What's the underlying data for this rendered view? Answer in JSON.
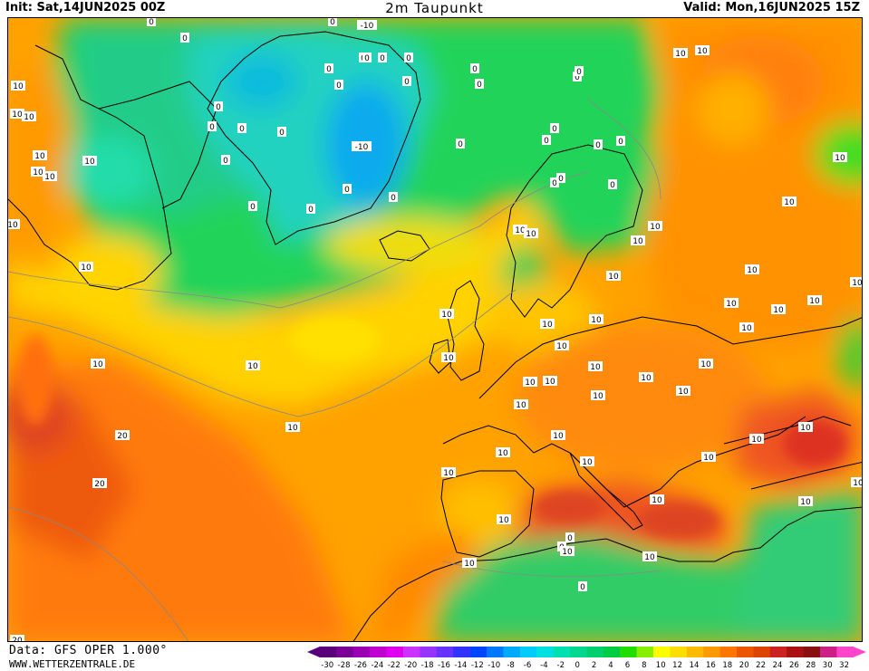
{
  "header": {
    "init_text": "Init: Sat,14JUN2025 00Z",
    "title": "2m Taupunkt",
    "valid_text": "Valid: Mon,16JUN2025 15Z"
  },
  "footer": {
    "data_source": "Data: GFS OPER 1.000°",
    "website": "WWW.WETTERZENTRALE.DE"
  },
  "colorbar": {
    "ticks": [
      "-30",
      "-28",
      "-26",
      "-24",
      "-22",
      "-20",
      "-18",
      "-16",
      "-14",
      "-12",
      "-10",
      "-8",
      "-6",
      "-4",
      "-2",
      "0",
      "2",
      "4",
      "6",
      "8",
      "10",
      "12",
      "14",
      "16",
      "18",
      "20",
      "22",
      "24",
      "26",
      "28",
      "30",
      "32"
    ],
    "colors": [
      "#5a007a",
      "#7a0096",
      "#9a00b4",
      "#c000d0",
      "#e000f0",
      "#cc33ff",
      "#9933ff",
      "#6633ff",
      "#3333ff",
      "#0044ff",
      "#0077ff",
      "#00aaff",
      "#00ccff",
      "#00e0e0",
      "#00e0b0",
      "#00d890",
      "#00d070",
      "#00cc44",
      "#22dd00",
      "#88ee00",
      "#ffff00",
      "#ffdd00",
      "#ffbb00",
      "#ff9900",
      "#ff7700",
      "#ee5500",
      "#dd4400",
      "#cc2222",
      "#aa1111",
      "#881111",
      "#cc2288",
      "#ff44cc"
    ]
  },
  "map_labels": [
    {
      "text": "0"
    },
    {
      "text": "0"
    },
    {
      "text": "0"
    },
    {
      "text": "0"
    },
    {
      "text": "-10"
    },
    {
      "text": "0"
    },
    {
      "text": "0"
    },
    {
      "text": "0"
    },
    {
      "text": "0"
    },
    {
      "text": "0"
    },
    {
      "text": "0"
    },
    {
      "text": "0"
    },
    {
      "text": "0"
    },
    {
      "text": "0"
    },
    {
      "text": "0"
    },
    {
      "text": "0"
    },
    {
      "text": "0"
    },
    {
      "text": "0"
    },
    {
      "text": "0"
    },
    {
      "text": "0"
    },
    {
      "text": "-10"
    },
    {
      "text": "0"
    },
    {
      "text": "0"
    },
    {
      "text": "0"
    },
    {
      "text": "0"
    },
    {
      "text": "0"
    },
    {
      "text": "0"
    },
    {
      "text": "0"
    },
    {
      "text": "0"
    },
    {
      "text": "0"
    },
    {
      "text": "0"
    },
    {
      "text": "0"
    },
    {
      "text": "0"
    },
    {
      "text": "0"
    },
    {
      "text": "0"
    },
    {
      "text": "0"
    },
    {
      "text": "10"
    },
    {
      "text": "10"
    },
    {
      "text": "10"
    },
    {
      "text": "10"
    },
    {
      "text": "10"
    },
    {
      "text": "10"
    },
    {
      "text": "10"
    },
    {
      "text": "10"
    },
    {
      "text": "10"
    },
    {
      "text": "10"
    },
    {
      "text": "10"
    },
    {
      "text": "10"
    },
    {
      "text": "10"
    },
    {
      "text": "10"
    },
    {
      "text": "10"
    },
    {
      "text": "10"
    },
    {
      "text": "10"
    },
    {
      "text": "10"
    },
    {
      "text": "10"
    },
    {
      "text": "10"
    },
    {
      "text": "10"
    },
    {
      "text": "10"
    },
    {
      "text": "10"
    },
    {
      "text": "10"
    },
    {
      "text": "10"
    },
    {
      "text": "10"
    },
    {
      "text": "10"
    },
    {
      "text": "10"
    },
    {
      "text": "10"
    },
    {
      "text": "10"
    },
    {
      "text": "10"
    },
    {
      "text": "10"
    },
    {
      "text": "10"
    },
    {
      "text": "10"
    },
    {
      "text": "10"
    },
    {
      "text": "10"
    },
    {
      "text": "10"
    },
    {
      "text": "10"
    },
    {
      "text": "10"
    },
    {
      "text": "10"
    },
    {
      "text": "10"
    },
    {
      "text": "10"
    },
    {
      "text": "10"
    },
    {
      "text": "10"
    },
    {
      "text": "10"
    },
    {
      "text": "10"
    },
    {
      "text": "10"
    },
    {
      "text": "10"
    },
    {
      "text": "10"
    },
    {
      "text": "10"
    },
    {
      "text": "10"
    },
    {
      "text": "10"
    },
    {
      "text": "10"
    },
    {
      "text": "10"
    },
    {
      "text": "20"
    },
    {
      "text": "20"
    },
    {
      "text": "20"
    }
  ]
}
